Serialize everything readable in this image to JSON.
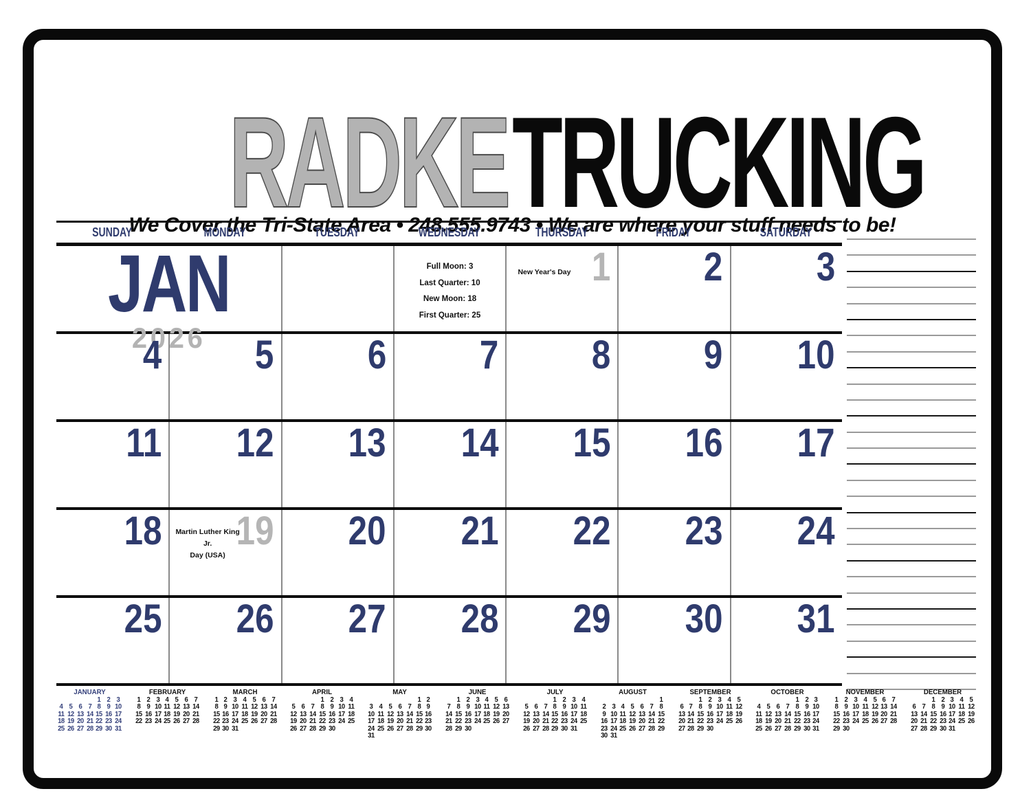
{
  "brand": {
    "name_left": "RADKE",
    "name_right": "TRUCKING",
    "tagline": "We Cover the Tri-State Area   •   248.555.9743   •   We are where your stuff needs to be!"
  },
  "calendar": {
    "month_abbr": "JAN",
    "year": "2026",
    "day_headers": [
      "SUNDAY",
      "MONDAY",
      "TUESDAY",
      "WEDNESDAY",
      "THURSDAY",
      "FRIDAY",
      "SATURDAY"
    ],
    "moon_phases": [
      "Full Moon: 3",
      "Last Quarter: 10",
      "New Moon: 18",
      "First Quarter: 25"
    ],
    "weeks": [
      [
        {
          "type": "month"
        },
        {
          "type": "blank"
        },
        {
          "type": "moon"
        },
        {
          "type": "day",
          "day": "1",
          "muted": true,
          "label": "New Year's Day"
        },
        {
          "type": "day",
          "day": "2"
        },
        {
          "type": "day",
          "day": "3"
        }
      ],
      [
        {
          "type": "day",
          "day": "4"
        },
        {
          "type": "day",
          "day": "5"
        },
        {
          "type": "day",
          "day": "6"
        },
        {
          "type": "day",
          "day": "7"
        },
        {
          "type": "day",
          "day": "8"
        },
        {
          "type": "day",
          "day": "9"
        },
        {
          "type": "day",
          "day": "10"
        }
      ],
      [
        {
          "type": "day",
          "day": "11"
        },
        {
          "type": "day",
          "day": "12"
        },
        {
          "type": "day",
          "day": "13"
        },
        {
          "type": "day",
          "day": "14"
        },
        {
          "type": "day",
          "day": "15"
        },
        {
          "type": "day",
          "day": "16"
        },
        {
          "type": "day",
          "day": "17"
        }
      ],
      [
        {
          "type": "day",
          "day": "18"
        },
        {
          "type": "day",
          "day": "19",
          "muted": true,
          "label": "Martin Luther King Jr.\nDay (USA)"
        },
        {
          "type": "day",
          "day": "20"
        },
        {
          "type": "day",
          "day": "21"
        },
        {
          "type": "day",
          "day": "22"
        },
        {
          "type": "day",
          "day": "23"
        },
        {
          "type": "day",
          "day": "24"
        }
      ],
      [
        {
          "type": "day",
          "day": "25"
        },
        {
          "type": "day",
          "day": "26"
        },
        {
          "type": "day",
          "day": "27"
        },
        {
          "type": "day",
          "day": "28"
        },
        {
          "type": "day",
          "day": "29"
        },
        {
          "type": "day",
          "day": "30"
        },
        {
          "type": "day",
          "day": "31"
        }
      ]
    ]
  },
  "mini_calendars": {
    "months": [
      {
        "name": "JANUARY",
        "first_dow": 4,
        "days": 31,
        "highlight": true
      },
      {
        "name": "FEBRUARY",
        "first_dow": 0,
        "days": 28,
        "highlight": false
      },
      {
        "name": "MARCH",
        "first_dow": 0,
        "days": 31,
        "highlight": false
      },
      {
        "name": "APRIL",
        "first_dow": 3,
        "days": 30,
        "highlight": false
      },
      {
        "name": "MAY",
        "first_dow": 5,
        "days": 31,
        "highlight": false
      },
      {
        "name": "JUNE",
        "first_dow": 1,
        "days": 30,
        "highlight": false
      },
      {
        "name": "JULY",
        "first_dow": 3,
        "days": 31,
        "highlight": false
      },
      {
        "name": "AUGUST",
        "first_dow": 6,
        "days": 31,
        "highlight": false
      },
      {
        "name": "SEPTEMBER",
        "first_dow": 2,
        "days": 30,
        "highlight": false
      },
      {
        "name": "OCTOBER",
        "first_dow": 4,
        "days": 31,
        "highlight": false
      },
      {
        "name": "NOVEMBER",
        "first_dow": 0,
        "days": 30,
        "highlight": false
      },
      {
        "name": "DECEMBER",
        "first_dow": 2,
        "days": 31,
        "highlight": false
      }
    ]
  },
  "notes": {
    "line_count": 29
  },
  "colors": {
    "navy": "#2f3b6d",
    "muted_gray": "#b5b5b5",
    "brand_gray": "#b3b3b3",
    "black": "#0a0a0a",
    "grid_line_gray": "#8a8a8a",
    "notes_line_gray": "#9a9a9a"
  }
}
